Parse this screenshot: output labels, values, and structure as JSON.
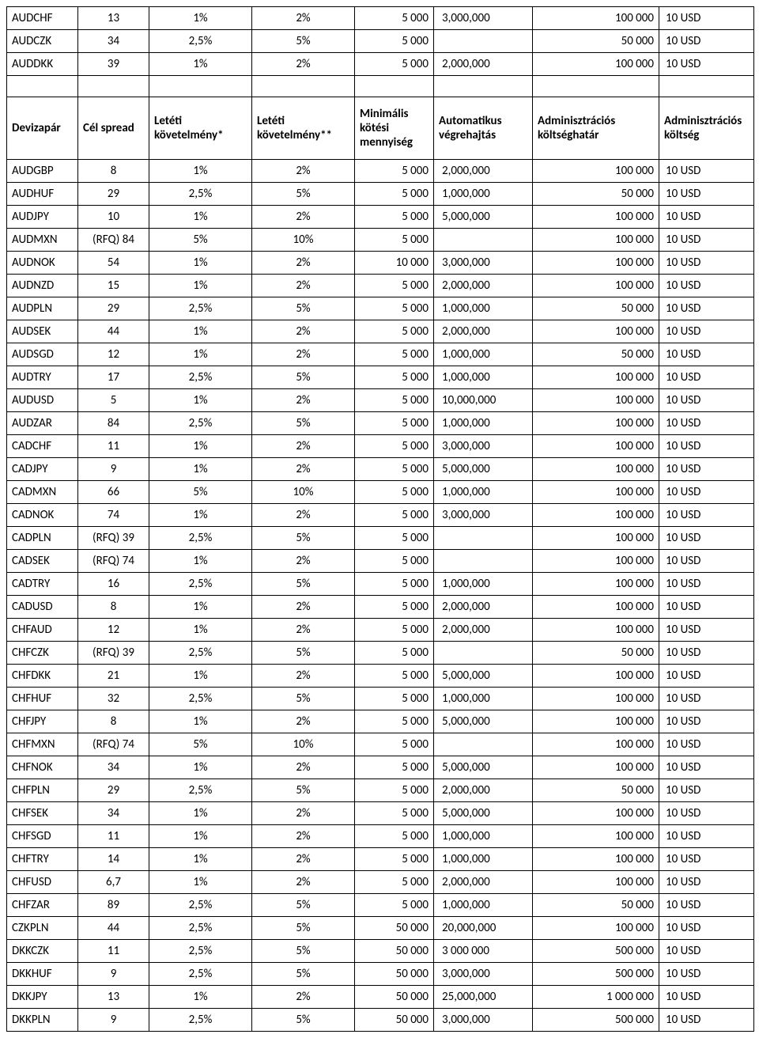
{
  "headers": {
    "pair": "Devizapár",
    "spread": "Cél spread",
    "dep1": "Letéti követelmény*",
    "dep2": "Letéti követelmény**",
    "minqty": "Minimális kötési mennyiség",
    "auto": "Automatikus végrehajtás",
    "limit": "Adminisztrációs költséghatár",
    "fee": "Adminisztrációs költség"
  },
  "top_rows": [
    [
      "AUDCHF",
      "13",
      "1%",
      "2%",
      "5 000",
      "3,000,000",
      "100 000",
      "10 USD"
    ],
    [
      "AUDCZK",
      "34",
      "2,5%",
      "5%",
      "5 000",
      "",
      "50 000",
      "10 USD"
    ],
    [
      "AUDDKK",
      "39",
      "1%",
      "2%",
      "5 000",
      "2,000,000",
      "100 000",
      "10 USD"
    ]
  ],
  "rows": [
    [
      "AUDGBP",
      "8",
      "1%",
      "2%",
      "5 000",
      "2,000,000",
      "100 000",
      "10 USD"
    ],
    [
      "AUDHUF",
      "29",
      "2,5%",
      "5%",
      "5 000",
      "1,000,000",
      "50 000",
      "10 USD"
    ],
    [
      "AUDJPY",
      "10",
      "1%",
      "2%",
      "5 000",
      "5,000,000",
      "100 000",
      "10 USD"
    ],
    [
      "AUDMXN",
      "(RFQ) 84",
      "5%",
      "10%",
      "5 000",
      "",
      "100 000",
      "10 USD"
    ],
    [
      "AUDNOK",
      "54",
      "1%",
      "2%",
      "10 000",
      "3,000,000",
      "100 000",
      "10 USD"
    ],
    [
      "AUDNZD",
      "15",
      "1%",
      "2%",
      "5 000",
      "2,000,000",
      "100 000",
      "10 USD"
    ],
    [
      "AUDPLN",
      "29",
      "2,5%",
      "5%",
      "5 000",
      "1,000,000",
      "50 000",
      "10 USD"
    ],
    [
      "AUDSEK",
      "44",
      "1%",
      "2%",
      "5 000",
      "2,000,000",
      "100 000",
      "10 USD"
    ],
    [
      "AUDSGD",
      "12",
      "1%",
      "2%",
      "5 000",
      "1,000,000",
      "50 000",
      "10 USD"
    ],
    [
      "AUDTRY",
      "17",
      "2,5%",
      "5%",
      "5 000",
      "1,000,000",
      "100 000",
      "10 USD"
    ],
    [
      "AUDUSD",
      "5",
      "1%",
      "2%",
      "5 000",
      "10,000,000",
      "100 000",
      "10 USD"
    ],
    [
      "AUDZAR",
      "84",
      "2,5%",
      "5%",
      "5 000",
      "1,000,000",
      "100 000",
      "10 USD"
    ],
    [
      "CADCHF",
      "11",
      "1%",
      "2%",
      "5 000",
      "3,000,000",
      "100 000",
      "10 USD"
    ],
    [
      "CADJPY",
      "9",
      "1%",
      "2%",
      "5 000",
      "5,000,000",
      "100 000",
      "10 USD"
    ],
    [
      "CADMXN",
      "66",
      "5%",
      "10%",
      "5 000",
      "1,000,000",
      "100 000",
      "10 USD"
    ],
    [
      "CADNOK",
      "74",
      "1%",
      "2%",
      "5 000",
      "3,000,000",
      "100 000",
      "10 USD"
    ],
    [
      "CADPLN",
      "(RFQ) 39",
      "2,5%",
      "5%",
      "5 000",
      "",
      "100 000",
      "10 USD"
    ],
    [
      "CADSEK",
      "(RFQ) 74",
      "1%",
      "2%",
      "5 000",
      "",
      "100 000",
      "10 USD"
    ],
    [
      "CADTRY",
      "16",
      "2,5%",
      "5%",
      "5 000",
      "1,000,000",
      "100 000",
      "10 USD"
    ],
    [
      "CADUSD",
      "8",
      "1%",
      "2%",
      "5 000",
      "2,000,000",
      "100 000",
      "10 USD"
    ],
    [
      "CHFAUD",
      "12",
      "1%",
      "2%",
      "5 000",
      "2,000,000",
      "100 000",
      "10 USD"
    ],
    [
      "CHFCZK",
      "(RFQ) 39",
      "2,5%",
      "5%",
      "5 000",
      "",
      "50 000",
      "10 USD"
    ],
    [
      "CHFDKK",
      "21",
      "1%",
      "2%",
      "5 000",
      "5,000,000",
      "100 000",
      "10 USD"
    ],
    [
      "CHFHUF",
      "32",
      "2,5%",
      "5%",
      "5 000",
      "1,000,000",
      "100 000",
      "10 USD"
    ],
    [
      "CHFJPY",
      "8",
      "1%",
      "2%",
      "5 000",
      "5,000,000",
      "100 000",
      "10 USD"
    ],
    [
      "CHFMXN",
      "(RFQ) 74",
      "5%",
      "10%",
      "5 000",
      "",
      "100 000",
      "10 USD"
    ],
    [
      "CHFNOK",
      "34",
      "1%",
      "2%",
      "5 000",
      "5,000,000",
      "100 000",
      "10 USD"
    ],
    [
      "CHFPLN",
      "29",
      "2,5%",
      "5%",
      "5 000",
      "2,000,000",
      "50 000",
      "10 USD"
    ],
    [
      "CHFSEK",
      "34",
      "1%",
      "2%",
      "5 000",
      "5,000,000",
      "100 000",
      "10 USD"
    ],
    [
      "CHFSGD",
      "11",
      "1%",
      "2%",
      "5 000",
      "1,000,000",
      "100 000",
      "10 USD"
    ],
    [
      "CHFTRY",
      "14",
      "1%",
      "2%",
      "5 000",
      "1,000,000",
      "100 000",
      "10 USD"
    ],
    [
      "CHFUSD",
      "6,7",
      "1%",
      "2%",
      "5 000",
      "2,000,000",
      "100 000",
      "10 USD"
    ],
    [
      "CHFZAR",
      "89",
      "2,5%",
      "5%",
      "5 000",
      "1,000,000",
      "50 000",
      "10 USD"
    ],
    [
      "CZKPLN",
      "44",
      "2,5%",
      "5%",
      "50 000",
      "20,000,000",
      "100 000",
      "10 USD"
    ],
    [
      "DKKCZK",
      "11",
      "2,5%",
      "5%",
      "50 000",
      "3 000 000",
      "500 000",
      "10 USD"
    ],
    [
      "DKKHUF",
      "9",
      "2,5%",
      "5%",
      "50 000",
      "3,000,000",
      "500 000",
      "10 USD"
    ],
    [
      "DKKJPY",
      "13",
      "1%",
      "2%",
      "50 000",
      "25,000,000",
      "1 000 000",
      "10 USD"
    ],
    [
      "DKKPLN",
      "9",
      "2,5%",
      "5%",
      "50 000",
      "3,000,000",
      "500 000",
      "10 USD"
    ]
  ]
}
